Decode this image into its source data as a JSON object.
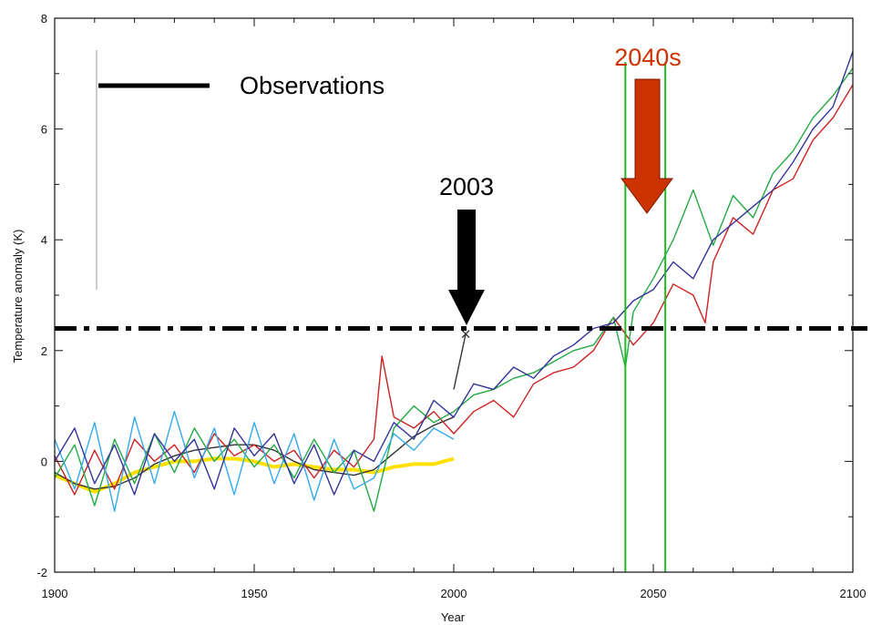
{
  "chart_data": {
    "type": "line",
    "title": "",
    "xlabel": "Year",
    "ylabel": "Temperature anomaly (K)",
    "xlim": [
      1900,
      2100
    ],
    "ylim": [
      -2,
      8
    ],
    "x_ticks": [
      1900,
      1950,
      2000,
      2050,
      2100
    ],
    "x_tick_labels": [
      "1900",
      "1950",
      "2000",
      "2050",
      "2100"
    ],
    "y_ticks": [
      -2,
      0,
      2,
      4,
      6,
      8
    ],
    "y_tick_labels": [
      "-2",
      "0",
      "2",
      "4",
      "6",
      "8"
    ],
    "legend": {
      "placement": "top-left",
      "entries": [
        {
          "label": "Observations",
          "color": "#000000"
        }
      ]
    },
    "threshold": {
      "y": 2.4,
      "style": "dash-dot",
      "color": "#000000"
    },
    "window_lines": {
      "x": [
        2043,
        2053
      ],
      "color": "#22bb22"
    },
    "annotations": [
      {
        "text": "2003",
        "x": 2003,
        "y": 2.35,
        "color": "#000000"
      },
      {
        "text": "2040s",
        "x": 2048,
        "y": 4.6,
        "color": "#cc3300"
      }
    ],
    "series": [
      {
        "name": "Observations",
        "color": "#ffe000",
        "x": [
          1900,
          1905,
          1910,
          1915,
          1920,
          1925,
          1930,
          1935,
          1940,
          1945,
          1950,
          1955,
          1960,
          1965,
          1970,
          1975,
          1980,
          1985,
          1990,
          1995,
          2000
        ],
        "y": [
          -0.25,
          -0.4,
          -0.55,
          -0.4,
          -0.2,
          -0.1,
          0.0,
          0.0,
          0.05,
          0.05,
          0.0,
          -0.1,
          -0.05,
          -0.1,
          -0.15,
          -0.15,
          -0.2,
          -0.1,
          -0.05,
          -0.05,
          0.05
        ]
      },
      {
        "color": "#333333",
        "x": [
          1900,
          1905,
          1910,
          1915,
          1920,
          1925,
          1930,
          1935,
          1940,
          1945,
          1950,
          1955,
          1960,
          1965,
          1970,
          1975,
          1980,
          1985,
          1990,
          1995,
          2000
        ],
        "y": [
          -0.2,
          -0.4,
          -0.5,
          -0.45,
          -0.3,
          -0.05,
          0.1,
          0.2,
          0.25,
          0.3,
          0.3,
          0.2,
          0.0,
          -0.15,
          -0.2,
          -0.25,
          -0.15,
          0.15,
          0.45,
          0.65,
          0.8
        ]
      },
      {
        "color": "#333333",
        "x": [
          2000,
          2003
        ],
        "y": [
          1.3,
          2.3
        ]
      },
      {
        "color": "#cc2222",
        "x": [
          1900,
          1905,
          1910,
          1915,
          1920,
          1925,
          1930,
          1935,
          1940,
          1945,
          1950,
          1955,
          1960,
          1965,
          1970,
          1975,
          1980,
          1982,
          1985,
          1990,
          1995,
          2000,
          2005,
          2010,
          2015,
          2020,
          2025,
          2030,
          2035,
          2040,
          2045,
          2050,
          2055,
          2060,
          2063,
          2065,
          2070,
          2075,
          2080,
          2085,
          2090,
          2095,
          2100
        ],
        "y": [
          0.1,
          -0.6,
          0.2,
          -0.5,
          0.4,
          0.0,
          0.3,
          -0.2,
          0.5,
          0.1,
          0.3,
          0.0,
          0.2,
          -0.3,
          0.2,
          -0.1,
          0.4,
          1.9,
          0.8,
          0.6,
          0.9,
          0.5,
          0.9,
          1.1,
          0.8,
          1.4,
          1.6,
          1.7,
          2.0,
          2.6,
          2.1,
          2.5,
          3.2,
          3.0,
          2.5,
          3.6,
          4.4,
          4.1,
          4.9,
          5.1,
          5.8,
          6.2,
          6.8
        ]
      },
      {
        "color": "#22aa44",
        "x": [
          1900,
          1905,
          1910,
          1915,
          1920,
          1925,
          1930,
          1935,
          1940,
          1945,
          1950,
          1955,
          1960,
          1965,
          1970,
          1975,
          1980,
          1985,
          1990,
          1995,
          2000,
          2005,
          2010,
          2015,
          2020,
          2025,
          2030,
          2035,
          2040,
          2043,
          2045,
          2050,
          2055,
          2060,
          2065,
          2070,
          2075,
          2080,
          2085,
          2090,
          2095,
          2100
        ],
        "y": [
          -0.3,
          0.3,
          -0.8,
          0.4,
          -0.4,
          0.5,
          -0.2,
          0.6,
          0.0,
          0.4,
          -0.1,
          0.3,
          -0.3,
          0.4,
          -0.2,
          0.2,
          -0.9,
          0.6,
          1.0,
          0.7,
          0.9,
          1.2,
          1.3,
          1.5,
          1.6,
          1.8,
          2.0,
          2.1,
          2.6,
          1.7,
          2.7,
          3.3,
          4.0,
          4.9,
          3.9,
          4.8,
          4.4,
          5.2,
          5.6,
          6.2,
          6.6,
          7.1
        ]
      },
      {
        "color": "#33aaee",
        "x": [
          1900,
          1905,
          1910,
          1915,
          1920,
          1925,
          1930,
          1935,
          1940,
          1945,
          1950,
          1955,
          1960,
          1965,
          1970,
          1975,
          1980,
          1985,
          1990,
          1995,
          2000
        ],
        "y": [
          0.4,
          -0.5,
          0.7,
          -0.9,
          0.8,
          -0.4,
          0.9,
          -0.3,
          0.6,
          -0.6,
          0.7,
          -0.4,
          0.5,
          -0.7,
          0.4,
          -0.5,
          -0.3,
          0.5,
          0.2,
          0.6,
          0.4
        ]
      },
      {
        "color": "#333399",
        "x": [
          1900,
          1905,
          1910,
          1915,
          1920,
          1925,
          1930,
          1935,
          1940,
          1945,
          1950,
          1955,
          1960,
          1965,
          1970,
          1975,
          1980,
          1985,
          1990,
          1995,
          2000,
          2005,
          2010,
          2015,
          2020,
          2025,
          2030,
          2035,
          2040,
          2045,
          2050,
          2055,
          2060,
          2065,
          2070,
          2075,
          2080,
          2085,
          2090,
          2095,
          2100
        ],
        "y": [
          0.0,
          0.6,
          -0.4,
          0.3,
          -0.6,
          0.5,
          0.0,
          0.4,
          -0.5,
          0.6,
          0.1,
          0.5,
          -0.4,
          0.3,
          -0.6,
          0.2,
          0.0,
          0.7,
          0.4,
          1.1,
          0.8,
          1.4,
          1.3,
          1.7,
          1.5,
          1.9,
          2.1,
          2.4,
          2.5,
          2.9,
          3.1,
          3.6,
          3.3,
          4.0,
          4.3,
          4.6,
          4.9,
          5.4,
          6.0,
          6.4,
          7.4
        ]
      }
    ]
  }
}
